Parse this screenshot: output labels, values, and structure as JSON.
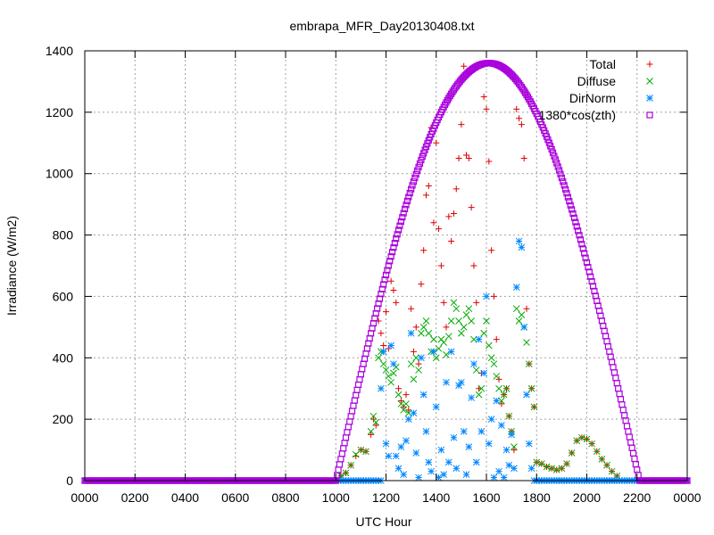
{
  "chart_data": {
    "type": "scatter",
    "title": "embrapa_MFR_Day20130408.txt",
    "xlabel": "UTC Hour",
    "ylabel": "Irradiance (W/m2)",
    "xlim": [
      0,
      24
    ],
    "ylim": [
      0,
      1400
    ],
    "x_tick_labels": [
      "0000",
      "0200",
      "0400",
      "0600",
      "0800",
      "1000",
      "1200",
      "1400",
      "1600",
      "1800",
      "2000",
      "2200",
      "0000"
    ],
    "y_ticks": [
      0,
      200,
      400,
      600,
      800,
      1000,
      1200,
      1400
    ],
    "grid": true,
    "legend_position": "top-right",
    "series": [
      {
        "name": "Total",
        "marker": "plus",
        "color": "#dd0000",
        "points": [
          [
            10.2,
            15
          ],
          [
            10.4,
            25
          ],
          [
            10.6,
            50
          ],
          [
            10.8,
            80
          ],
          [
            11.0,
            100
          ],
          [
            11.2,
            95
          ],
          [
            11.4,
            150
          ],
          [
            11.5,
            200
          ],
          [
            11.6,
            180
          ],
          [
            11.7,
            520
          ],
          [
            11.8,
            480
          ],
          [
            11.9,
            440
          ],
          [
            12.0,
            550
          ],
          [
            12.1,
            430
          ],
          [
            12.2,
            650
          ],
          [
            12.3,
            620
          ],
          [
            12.4,
            580
          ],
          [
            12.5,
            300
          ],
          [
            12.6,
            260
          ],
          [
            12.7,
            240
          ],
          [
            12.8,
            280
          ],
          [
            12.9,
            230
          ],
          [
            13.0,
            560
          ],
          [
            13.1,
            420
          ],
          [
            13.2,
            500
          ],
          [
            13.3,
            380
          ],
          [
            13.4,
            640
          ],
          [
            13.5,
            750
          ],
          [
            13.6,
            930
          ],
          [
            13.7,
            960
          ],
          [
            13.8,
            1150
          ],
          [
            13.9,
            840
          ],
          [
            14.0,
            1100
          ],
          [
            14.1,
            820
          ],
          [
            14.2,
            700
          ],
          [
            14.3,
            580
          ],
          [
            14.4,
            500
          ],
          [
            14.5,
            860
          ],
          [
            14.6,
            780
          ],
          [
            14.7,
            870
          ],
          [
            14.8,
            950
          ],
          [
            14.9,
            1050
          ],
          [
            15.0,
            1160
          ],
          [
            15.1,
            1350
          ],
          [
            15.2,
            1060
          ],
          [
            15.3,
            1050
          ],
          [
            15.4,
            890
          ],
          [
            15.5,
            700
          ],
          [
            15.6,
            580
          ],
          [
            15.7,
            300
          ],
          [
            15.8,
            350
          ],
          [
            15.9,
            1250
          ],
          [
            16.0,
            1210
          ],
          [
            16.1,
            1040
          ],
          [
            16.2,
            750
          ],
          [
            16.3,
            600
          ],
          [
            16.4,
            460
          ],
          [
            16.5,
            330
          ],
          [
            16.6,
            250
          ],
          [
            16.7,
            280
          ],
          [
            16.8,
            300
          ],
          [
            16.9,
            210
          ],
          [
            17.0,
            160
          ],
          [
            17.1,
            100
          ],
          [
            17.2,
            1210
          ],
          [
            17.3,
            1180
          ],
          [
            17.4,
            1160
          ],
          [
            17.5,
            1050
          ],
          [
            17.6,
            560
          ],
          [
            17.7,
            380
          ],
          [
            17.8,
            300
          ],
          [
            17.9,
            240
          ],
          [
            18.0,
            60
          ],
          [
            18.2,
            55
          ],
          [
            18.4,
            45
          ],
          [
            18.6,
            40
          ],
          [
            18.8,
            35
          ],
          [
            19.0,
            40
          ],
          [
            19.2,
            55
          ],
          [
            19.4,
            90
          ],
          [
            19.6,
            130
          ],
          [
            19.8,
            140
          ],
          [
            20.0,
            135
          ],
          [
            20.2,
            120
          ],
          [
            20.4,
            95
          ],
          [
            20.6,
            70
          ],
          [
            20.8,
            50
          ],
          [
            21.0,
            30
          ],
          [
            21.2,
            15
          ]
        ]
      },
      {
        "name": "Diffuse",
        "marker": "cross",
        "color": "#00aa00",
        "points": [
          [
            10.2,
            15
          ],
          [
            10.4,
            25
          ],
          [
            10.6,
            50
          ],
          [
            10.8,
            85
          ],
          [
            11.0,
            100
          ],
          [
            11.2,
            95
          ],
          [
            11.4,
            160
          ],
          [
            11.5,
            210
          ],
          [
            11.6,
            190
          ],
          [
            11.7,
            400
          ],
          [
            11.8,
            420
          ],
          [
            11.9,
            380
          ],
          [
            12.0,
            360
          ],
          [
            12.1,
            340
          ],
          [
            12.2,
            320
          ],
          [
            12.3,
            350
          ],
          [
            12.4,
            370
          ],
          [
            12.5,
            280
          ],
          [
            12.6,
            250
          ],
          [
            12.7,
            230
          ],
          [
            12.8,
            250
          ],
          [
            12.9,
            220
          ],
          [
            13.0,
            380
          ],
          [
            13.1,
            330
          ],
          [
            13.2,
            400
          ],
          [
            13.3,
            360
          ],
          [
            13.4,
            480
          ],
          [
            13.5,
            500
          ],
          [
            13.6,
            520
          ],
          [
            13.7,
            480
          ],
          [
            13.8,
            420
          ],
          [
            13.9,
            460
          ],
          [
            14.0,
            400
          ],
          [
            14.1,
            430
          ],
          [
            14.2,
            460
          ],
          [
            14.3,
            450
          ],
          [
            14.4,
            410
          ],
          [
            14.5,
            470
          ],
          [
            14.6,
            520
          ],
          [
            14.7,
            580
          ],
          [
            14.8,
            560
          ],
          [
            14.9,
            520
          ],
          [
            15.0,
            480
          ],
          [
            15.1,
            500
          ],
          [
            15.2,
            540
          ],
          [
            15.3,
            560
          ],
          [
            15.4,
            520
          ],
          [
            15.5,
            460
          ],
          [
            15.6,
            360
          ],
          [
            15.7,
            280
          ],
          [
            15.8,
            300
          ],
          [
            15.9,
            480
          ],
          [
            16.0,
            520
          ],
          [
            16.1,
            440
          ],
          [
            16.2,
            400
          ],
          [
            16.3,
            380
          ],
          [
            16.4,
            340
          ],
          [
            16.5,
            300
          ],
          [
            16.6,
            260
          ],
          [
            16.7,
            280
          ],
          [
            16.8,
            300
          ],
          [
            16.9,
            210
          ],
          [
            17.0,
            160
          ],
          [
            17.1,
            110
          ],
          [
            17.2,
            560
          ],
          [
            17.3,
            520
          ],
          [
            17.4,
            540
          ],
          [
            17.5,
            500
          ],
          [
            17.6,
            450
          ],
          [
            17.7,
            380
          ],
          [
            17.8,
            300
          ],
          [
            17.9,
            240
          ],
          [
            18.0,
            60
          ],
          [
            18.2,
            55
          ],
          [
            18.4,
            45
          ],
          [
            18.6,
            40
          ],
          [
            18.8,
            35
          ],
          [
            19.0,
            40
          ],
          [
            19.2,
            55
          ],
          [
            19.4,
            90
          ],
          [
            19.6,
            130
          ],
          [
            19.8,
            140
          ],
          [
            20.0,
            135
          ],
          [
            20.2,
            120
          ],
          [
            20.4,
            95
          ],
          [
            20.6,
            70
          ],
          [
            20.8,
            50
          ],
          [
            21.0,
            30
          ],
          [
            21.2,
            15
          ]
        ]
      },
      {
        "name": "DirNorm",
        "marker": "star",
        "color": "#0088ff",
        "points": [
          [
            0,
            0
          ],
          [
            1,
            0
          ],
          [
            2,
            0
          ],
          [
            3,
            0
          ],
          [
            4,
            0
          ],
          [
            5,
            0
          ],
          [
            6,
            0
          ],
          [
            7,
            0
          ],
          [
            8,
            0
          ],
          [
            9,
            0
          ],
          [
            10,
            0
          ],
          [
            11,
            0
          ],
          [
            11.8,
            300
          ],
          [
            11.9,
            420
          ],
          [
            12.0,
            120
          ],
          [
            12.1,
            80
          ],
          [
            12.2,
            440
          ],
          [
            12.3,
            380
          ],
          [
            12.4,
            80
          ],
          [
            12.5,
            40
          ],
          [
            12.6,
            110
          ],
          [
            12.7,
            20
          ],
          [
            12.8,
            130
          ],
          [
            12.9,
            200
          ],
          [
            13.0,
            480
          ],
          [
            13.1,
            220
          ],
          [
            13.2,
            90
          ],
          [
            13.3,
            10
          ],
          [
            13.4,
            400
          ],
          [
            13.5,
            280
          ],
          [
            13.6,
            160
          ],
          [
            13.7,
            60
          ],
          [
            13.8,
            30
          ],
          [
            13.9,
            420
          ],
          [
            14.0,
            240
          ],
          [
            14.1,
            10
          ],
          [
            14.2,
            100
          ],
          [
            14.3,
            20
          ],
          [
            14.4,
            320
          ],
          [
            14.5,
            60
          ],
          [
            14.6,
            420
          ],
          [
            14.7,
            140
          ],
          [
            14.8,
            40
          ],
          [
            14.9,
            310
          ],
          [
            15.0,
            320
          ],
          [
            15.1,
            160
          ],
          [
            15.2,
            20
          ],
          [
            15.3,
            110
          ],
          [
            15.4,
            270
          ],
          [
            15.5,
            380
          ],
          [
            15.6,
            60
          ],
          [
            15.7,
            460
          ],
          [
            15.8,
            160
          ],
          [
            15.9,
            350
          ],
          [
            16.0,
            600
          ],
          [
            16.1,
            120
          ],
          [
            16.2,
            200
          ],
          [
            16.3,
            10
          ],
          [
            16.4,
            260
          ],
          [
            16.5,
            30
          ],
          [
            16.6,
            180
          ],
          [
            16.7,
            10
          ],
          [
            16.8,
            100
          ],
          [
            16.9,
            50
          ],
          [
            17.0,
            150
          ],
          [
            17.1,
            40
          ],
          [
            17.2,
            630
          ],
          [
            17.3,
            780
          ],
          [
            17.4,
            760
          ],
          [
            17.5,
            500
          ],
          [
            17.6,
            280
          ],
          [
            17.7,
            120
          ],
          [
            17.8,
            40
          ],
          [
            17.9,
            0
          ],
          [
            18,
            0
          ],
          [
            19,
            0
          ],
          [
            20,
            0
          ],
          [
            21,
            0
          ],
          [
            22,
            0
          ],
          [
            23,
            0
          ],
          [
            24,
            0
          ]
        ]
      },
      {
        "name": "1380*cos(zth)",
        "marker": "square",
        "color": "#aa00dd",
        "curve": {
          "sunrise": 10.0,
          "sunset": 22.1,
          "peak_x": 16.1,
          "peak_y": 1360,
          "step": 0.05
        }
      }
    ]
  }
}
